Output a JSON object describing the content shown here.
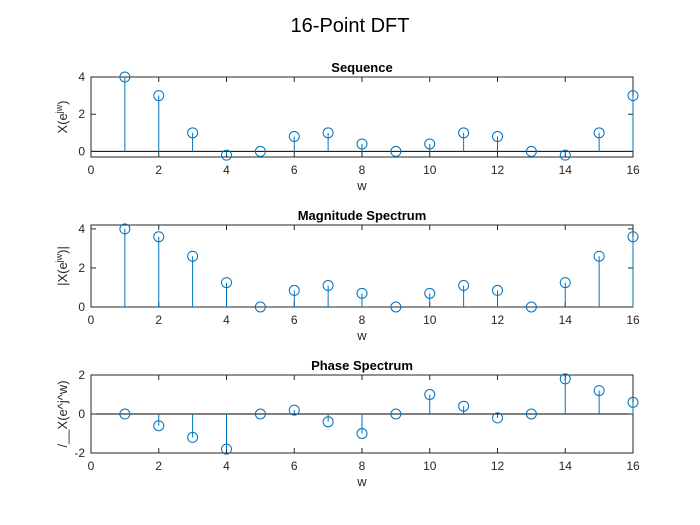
{
  "figure": {
    "title": "16-Point DFT"
  },
  "colors": {
    "stem": "#0072BD",
    "axis": "#262626",
    "baseline": "#000000"
  },
  "chart_data": [
    {
      "type": "stem",
      "title": "Sequence",
      "xlabel": "w",
      "ylabel": {
        "base": "X(e",
        "sup": "jw",
        "tail": ")"
      },
      "xlim": [
        0,
        16
      ],
      "ylim": [
        -0.3,
        4
      ],
      "xticks": [
        0,
        2,
        4,
        6,
        8,
        10,
        12,
        14,
        16
      ],
      "yticks": [
        0,
        2,
        4
      ],
      "x": [
        1,
        2,
        3,
        4,
        5,
        6,
        7,
        8,
        9,
        10,
        11,
        12,
        13,
        14,
        15,
        16
      ],
      "y": [
        4,
        3,
        1,
        -0.2,
        0,
        0.8,
        1,
        0.4,
        0,
        0.4,
        1,
        0.8,
        0,
        -0.2,
        1,
        3
      ],
      "grid": false
    },
    {
      "type": "stem",
      "title": "Magnitude Spectrum",
      "xlabel": "w",
      "ylabel": {
        "base": "|X(e",
        "sup": "jw",
        "tail": ")|"
      },
      "xlim": [
        0,
        16
      ],
      "ylim": [
        0,
        4.2
      ],
      "xticks": [
        0,
        2,
        4,
        6,
        8,
        10,
        12,
        14,
        16
      ],
      "yticks": [
        0,
        2,
        4
      ],
      "x": [
        1,
        2,
        3,
        4,
        5,
        6,
        7,
        8,
        9,
        10,
        11,
        12,
        13,
        14,
        15,
        16
      ],
      "y": [
        4,
        3.6,
        2.6,
        1.25,
        0,
        0.85,
        1.1,
        0.7,
        0,
        0.7,
        1.1,
        0.85,
        0,
        1.25,
        2.6,
        3.6
      ],
      "grid": false
    },
    {
      "type": "stem",
      "title": "Phase Spectrum",
      "xlabel": "w",
      "ylabel": {
        "base": "/__X(e^j^w)",
        "sup": "",
        "tail": ""
      },
      "xlim": [
        0,
        16
      ],
      "ylim": [
        -2,
        2
      ],
      "xticks": [
        0,
        2,
        4,
        6,
        8,
        10,
        12,
        14,
        16
      ],
      "yticks": [
        -2,
        0,
        2
      ],
      "x": [
        1,
        2,
        3,
        4,
        5,
        6,
        7,
        8,
        9,
        10,
        11,
        12,
        13,
        14,
        15,
        16
      ],
      "y": [
        0,
        -0.6,
        -1.2,
        -1.8,
        0,
        0.2,
        -0.4,
        -1.0,
        0,
        1.0,
        0.4,
        -0.2,
        0,
        1.8,
        1.2,
        0.6
      ],
      "grid": false
    }
  ]
}
